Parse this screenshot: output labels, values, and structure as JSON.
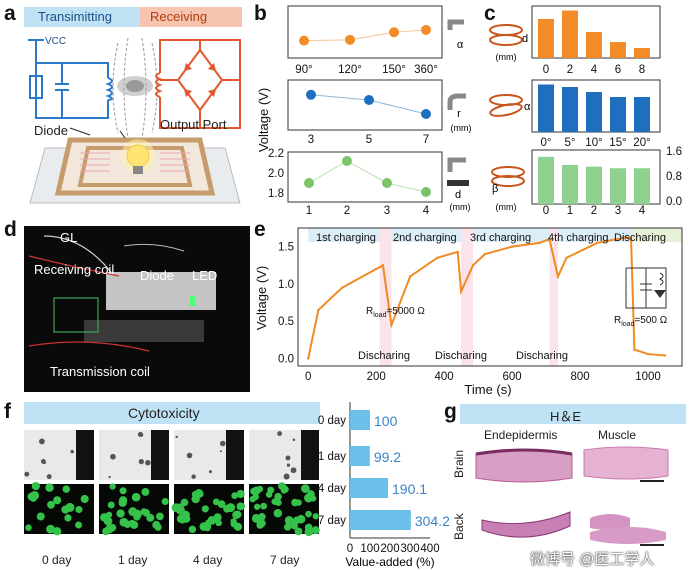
{
  "panels": {
    "a": {
      "label": "a",
      "tx_title": "Transimitting",
      "rx_title": "Receiving",
      "vcc": "VCC",
      "diode": "Diode",
      "output_port": "Output Port"
    },
    "b": {
      "label": "b",
      "ylabel": "Voltage (V)",
      "sub1": {
        "x_ticks": [
          "90°",
          "120°",
          "150°",
          "360°"
        ],
        "values": [
          0.3,
          0.32,
          0.52,
          0.58
        ],
        "icon_label": "α"
      },
      "sub2": {
        "x_ticks": [
          "3",
          "5",
          "7"
        ],
        "values": [
          0.78,
          0.65,
          0.3
        ],
        "icon_label": "r",
        "icon_unit": "(mm)"
      },
      "sub3": {
        "x_ticks": [
          "1",
          "2",
          "3",
          "4"
        ],
        "y_ticks": [
          "2.2",
          "2.0",
          "1.8"
        ],
        "values": [
          1.89,
          2.11,
          1.89,
          1.8
        ],
        "ylim": [
          1.7,
          2.2
        ],
        "icon_label": "d",
        "icon_unit": "(mm)"
      },
      "colors": {
        "sub1": "#f28c28",
        "sub2": "#1f6fbf",
        "sub3": "#7cc36a"
      }
    },
    "c": {
      "label": "c",
      "sub1": {
        "icon_label": "d",
        "icon_unit": "(mm)",
        "x_ticks": [
          "0",
          "2",
          "4",
          "6",
          "8"
        ],
        "values": [
          0.78,
          0.95,
          0.52,
          0.32,
          0.2
        ]
      },
      "sub2": {
        "icon_label": "α",
        "x_ticks": [
          "0°",
          "5°",
          "10°",
          "15°",
          "20°"
        ],
        "values": [
          0.95,
          0.9,
          0.8,
          0.7,
          0.7
        ]
      },
      "sub3": {
        "icon_label": "β",
        "icon_unit": "(mm)",
        "x_ticks": [
          "0",
          "1",
          "2",
          "3",
          "4"
        ],
        "values": [
          1.45,
          1.2,
          1.15,
          1.1,
          1.1
        ]
      },
      "y_ticks_right": [
        "1.6",
        "0.8",
        "0.0"
      ],
      "colors": {
        "sub1": "#f28c28",
        "sub2": "#1f6fbf",
        "sub3": "#8fd18f"
      }
    },
    "d": {
      "label": "d",
      "gl": "GL",
      "receiving_coil": "Receiving coil",
      "diode": "Diode",
      "led": "LED",
      "transmission_coil": "Transmission coil"
    },
    "e": {
      "label": "e",
      "ylabel": "Voltage (V)",
      "xlabel": "Time (s)",
      "phases": [
        "1st charging",
        "2nd charging",
        "3rd charging",
        "4th charging",
        "Discharing"
      ],
      "discharge_labels": [
        "Discharing",
        "Discharing",
        "Discharing"
      ],
      "r_load_1": "R",
      "r_load_1_sub": "load",
      "r_load_1_val": "=5000 Ω",
      "r_load_2": "R",
      "r_load_2_sub": "load",
      "r_load_2_val": "=500 Ω"
    },
    "f": {
      "label": "f",
      "title": "Cytotoxicity",
      "days": [
        "0 day",
        "1 day",
        "4 day",
        "7 day"
      ],
      "row_labels": [
        "0 day",
        "1 day",
        "4 day",
        "7 day"
      ],
      "xlabel": "Value-added (%)",
      "x_ticks": [
        "0",
        "100",
        "200",
        "300",
        "400"
      ]
    },
    "g": {
      "label": "g",
      "title": "H＆E",
      "col1": "Endepidermis",
      "col2": "Muscle",
      "row1": "Brain",
      "row2": "Back"
    }
  },
  "watermark": "微博号 @医工学人",
  "chart_data": [
    {
      "type": "line",
      "panel": "e",
      "title": "",
      "xlabel": "Time (s)",
      "ylabel": "Voltage (V)",
      "xlim": [
        -30,
        1100
      ],
      "ylim": [
        -0.1,
        1.75
      ],
      "x": [
        0,
        30,
        100,
        200,
        220,
        245,
        300,
        380,
        440,
        450,
        485,
        520,
        600,
        680,
        710,
        735,
        760,
        850,
        930,
        950,
        960,
        1000,
        1050
      ],
      "y": [
        0.0,
        0.65,
        0.95,
        1.2,
        1.25,
        0.45,
        1.1,
        1.35,
        1.43,
        0.9,
        1.25,
        1.4,
        1.5,
        1.55,
        1.6,
        1.1,
        1.35,
        1.55,
        1.62,
        1.62,
        0.12,
        0.06,
        0.04
      ],
      "x_ticks": [
        0,
        200,
        400,
        600,
        800,
        1000
      ],
      "y_ticks": [
        0.0,
        0.5,
        1.0,
        1.5
      ]
    },
    {
      "type": "bar",
      "panel": "f",
      "title": "",
      "xlabel": "Value-added (%)",
      "categories": [
        "0 day",
        "1 day",
        "4 day",
        "7 day"
      ],
      "values": [
        100,
        99.2,
        190.1,
        304.2
      ],
      "xlim": [
        0,
        400
      ],
      "x_ticks": [
        0,
        100,
        200,
        300,
        400
      ]
    },
    {
      "type": "line",
      "panel": "b",
      "series": [
        {
          "x": [
            "90°",
            "120°",
            "150°",
            "360°"
          ],
          "values": [
            0.3,
            0.32,
            0.52,
            0.58
          ]
        },
        {
          "x": [
            "3",
            "5",
            "7"
          ],
          "values": [
            0.78,
            0.65,
            0.3
          ]
        },
        {
          "x": [
            "1",
            "2",
            "3",
            "4"
          ],
          "values": [
            1.89,
            2.11,
            1.89,
            1.8
          ]
        }
      ]
    },
    {
      "type": "bar",
      "panel": "c",
      "series": [
        {
          "categories": [
            "0",
            "2",
            "4",
            "6",
            "8"
          ],
          "values": [
            0.78,
            0.95,
            0.52,
            0.32,
            0.2
          ]
        },
        {
          "categories": [
            "0°",
            "5°",
            "10°",
            "15°",
            "20°"
          ],
          "values": [
            0.95,
            0.9,
            0.8,
            0.7,
            0.7
          ]
        },
        {
          "categories": [
            "0",
            "1",
            "2",
            "3",
            "4"
          ],
          "values": [
            1.45,
            1.2,
            1.15,
            1.1,
            1.1
          ]
        }
      ]
    }
  ]
}
